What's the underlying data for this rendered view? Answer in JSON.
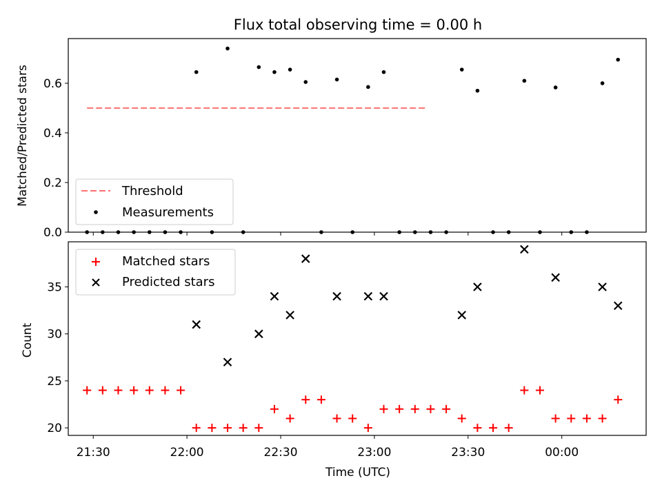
{
  "title": "Flux total observing time = 0.00 h",
  "colors": {
    "threshold": "#ff7070",
    "measurements": "#000000",
    "matched": "#ff0000",
    "predicted": "#000000"
  },
  "chart_data": [
    {
      "type": "scatter",
      "ylabel": "Matched/Predicted stars",
      "xlabel": "",
      "ylim": [
        0.0,
        0.78
      ],
      "yticks": [
        0.0,
        0.2,
        0.4,
        0.6
      ],
      "ytick_labels": [
        "0.0",
        "0.2",
        "0.4",
        "0.6"
      ],
      "legend_position": "lower-left",
      "threshold": {
        "name": "Threshold",
        "value": 0.5,
        "x_range": [
          "21:28",
          "23:17"
        ],
        "style": "dashed"
      },
      "series": [
        {
          "name": "Measurements",
          "x": [
            "21:28",
            "21:33",
            "21:38",
            "21:43",
            "21:48",
            "21:53",
            "21:58",
            "22:03",
            "22:08",
            "22:13",
            "22:18",
            "22:23",
            "22:28",
            "22:33",
            "22:38",
            "22:43",
            "22:48",
            "22:53",
            "22:58",
            "23:03",
            "23:08",
            "23:13",
            "23:18",
            "23:23",
            "23:28",
            "23:33",
            "23:38",
            "23:43",
            "23:48",
            "23:53",
            "23:58",
            "00:03",
            "00:08",
            "00:13",
            "00:18"
          ],
          "values": [
            0,
            0,
            0,
            0,
            0,
            0,
            0,
            0.645,
            0,
            0.74,
            0,
            0.665,
            0.645,
            0.655,
            0.605,
            0,
            0.615,
            0,
            0.585,
            0.645,
            0,
            0,
            0,
            0,
            0.655,
            0.57,
            0,
            0,
            0.61,
            0,
            0.583,
            0,
            0,
            0.6,
            0.695
          ]
        }
      ]
    },
    {
      "type": "scatter",
      "ylabel": "Count",
      "xlabel": "Time (UTC)",
      "ylim": [
        19.2,
        39.8
      ],
      "yticks": [
        20,
        25,
        30,
        35
      ],
      "ytick_labels": [
        "20",
        "25",
        "30",
        "35"
      ],
      "xticks": [
        "21:30",
        "22:00",
        "22:30",
        "23:00",
        "23:30",
        "00:00"
      ],
      "legend_position": "top-left",
      "series": [
        {
          "name": "Matched stars",
          "marker": "+",
          "x": [
            "21:28",
            "21:33",
            "21:38",
            "21:43",
            "21:48",
            "21:53",
            "21:58",
            "22:03",
            "22:08",
            "22:13",
            "22:18",
            "22:23",
            "22:28",
            "22:33",
            "22:38",
            "22:43",
            "22:48",
            "22:53",
            "22:58",
            "23:03",
            "23:08",
            "23:13",
            "23:18",
            "23:23",
            "23:28",
            "23:33",
            "23:38",
            "23:43",
            "23:48",
            "23:53",
            "23:58",
            "00:03",
            "00:08",
            "00:13",
            "00:18"
          ],
          "values": [
            24,
            24,
            24,
            24,
            24,
            24,
            24,
            20,
            20,
            20,
            20,
            20,
            22,
            21,
            23,
            23,
            21,
            21,
            20,
            22,
            22,
            22,
            22,
            22,
            21,
            20,
            20,
            20,
            24,
            24,
            21,
            21,
            21,
            21,
            23
          ]
        },
        {
          "name": "Predicted stars",
          "marker": "x",
          "x": [
            "22:03",
            "22:13",
            "22:23",
            "22:28",
            "22:33",
            "22:38",
            "22:48",
            "22:58",
            "23:03",
            "23:28",
            "23:33",
            "23:48",
            "23:58",
            "00:13",
            "00:18"
          ],
          "values": [
            31,
            27,
            30,
            34,
            32,
            38,
            34,
            34,
            34,
            32,
            35,
            39,
            36,
            35,
            33
          ]
        }
      ]
    }
  ]
}
